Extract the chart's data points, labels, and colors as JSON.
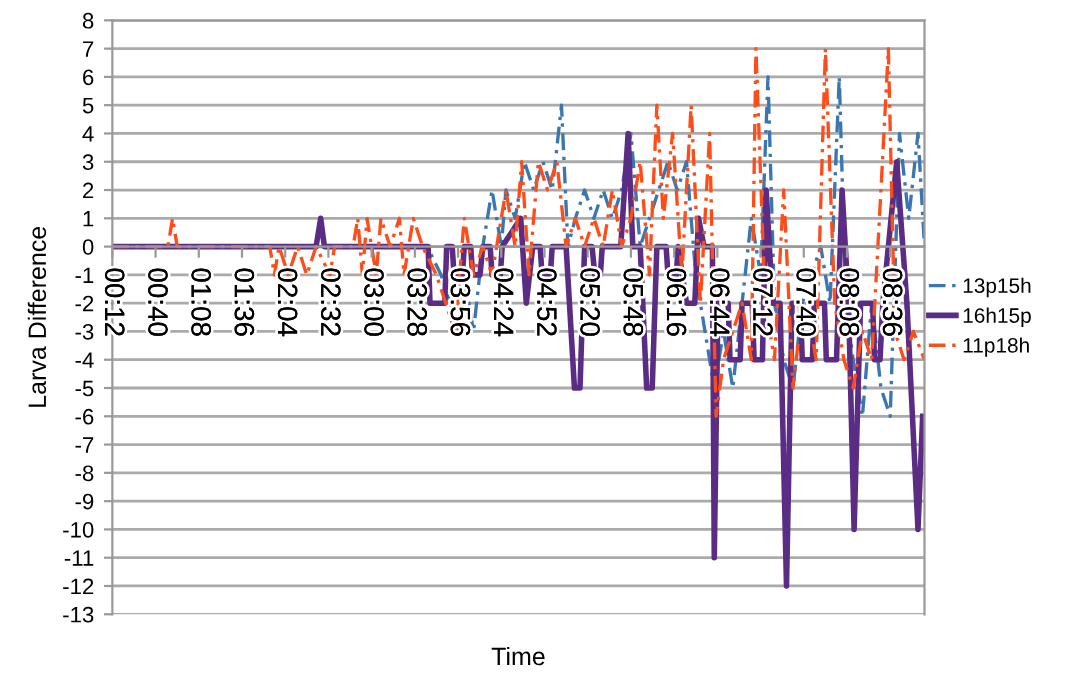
{
  "chart_data": {
    "type": "line",
    "xlabel": "Time",
    "ylabel": "Larva Difference",
    "xlim": [
      0.2,
      8.97
    ],
    "ylim": [
      -13,
      8
    ],
    "xticks": [
      {
        "value": 0.2,
        "label": "00:12"
      },
      {
        "value": 0.6667,
        "label": "00:40"
      },
      {
        "value": 1.1333,
        "label": "01:08"
      },
      {
        "value": 1.6,
        "label": "01:36"
      },
      {
        "value": 2.0667,
        "label": "02:04"
      },
      {
        "value": 2.5333,
        "label": "02:32"
      },
      {
        "value": 3,
        "label": "03:00"
      },
      {
        "value": 3.4667,
        "label": "03:28"
      },
      {
        "value": 3.9333,
        "label": "03:56"
      },
      {
        "value": 4.4,
        "label": "04:24"
      },
      {
        "value": 4.8667,
        "label": "04:52"
      },
      {
        "value": 5.3333,
        "label": "05:20"
      },
      {
        "value": 5.8,
        "label": "05:48"
      },
      {
        "value": 6.2667,
        "label": "06:16"
      },
      {
        "value": 6.7333,
        "label": "06:44"
      },
      {
        "value": 7.2,
        "label": "07:12"
      },
      {
        "value": 7.6667,
        "label": "07:40"
      },
      {
        "value": 8.1333,
        "label": "08:08"
      },
      {
        "value": 8.6,
        "label": "08:36"
      }
    ],
    "yticks": [
      -13,
      -12,
      -11,
      -10,
      -9,
      -8,
      -7,
      -6,
      -5,
      -4,
      -3,
      -2,
      -1,
      0,
      1,
      2,
      3,
      4,
      5,
      6,
      7,
      8
    ],
    "grid": "y",
    "legend": "right",
    "marker": "none",
    "series": [
      {
        "name": "13p15h",
        "color": "#3a76b0",
        "line_style": "dashed",
        "x": [
          0.2,
          3.6,
          3.75,
          3.85,
          3.95,
          4.0,
          4.1,
          4.2,
          4.3,
          4.4,
          4.45,
          4.55,
          4.65,
          4.75,
          4.85,
          4.95,
          5.05,
          5.12,
          5.2,
          5.3,
          5.4,
          5.5,
          5.6,
          5.7,
          5.8,
          5.9,
          6.0,
          6.1,
          6.2,
          6.3,
          6.4,
          6.5,
          6.6,
          6.7,
          6.8,
          6.9,
          7.0,
          7.1,
          7.2,
          7.28,
          7.35,
          7.45,
          7.55,
          7.65,
          7.75,
          7.85,
          7.95,
          8.05,
          8.12,
          8.2,
          8.3,
          8.4,
          8.5,
          8.6,
          8.7,
          8.8,
          8.9,
          8.97
        ],
        "values": [
          0,
          0,
          -1,
          -2,
          -3,
          -1,
          -3,
          0,
          2,
          0,
          2,
          1,
          3,
          2,
          3,
          2,
          5,
          0,
          1,
          2,
          1,
          2,
          1,
          2,
          4,
          0,
          1,
          2,
          3,
          2,
          3,
          -1,
          -3,
          -5,
          -3,
          -5,
          -2,
          1,
          -1,
          6,
          -2,
          -4,
          -5,
          -2,
          -1,
          0,
          -2,
          6,
          -2,
          -4,
          -6,
          -2,
          -5,
          -6,
          4,
          1,
          4,
          0
        ]
      },
      {
        "name": "16h15p",
        "color": "#5b2c83",
        "line_style": "solid",
        "x": [
          0.2,
          2.4,
          2.45,
          2.49,
          3.61,
          3.63,
          3.79,
          3.81,
          3.87,
          3.89,
          3.98,
          4.0,
          4.07,
          4.09,
          4.17,
          4.2,
          4.28,
          4.3,
          4.39,
          4.41,
          4.61,
          4.67,
          4.74,
          4.82,
          4.84,
          4.93,
          4.95,
          5.1,
          5.19,
          5.25,
          5.3,
          5.38,
          5.41,
          5.47,
          5.49,
          5.69,
          5.77,
          5.82,
          5.9,
          5.97,
          6.03,
          6.08,
          6.18,
          6.2,
          6.29,
          6.31,
          6.4,
          6.49,
          6.53,
          6.59,
          6.68,
          6.7,
          6.74,
          6.85,
          6.87,
          6.98,
          7.0,
          7.11,
          7.13,
          7.22,
          7.26,
          7.33,
          7.41,
          7.48,
          7.54,
          7.63,
          7.65,
          7.76,
          7.78,
          7.89,
          7.91,
          8.02,
          8.08,
          8.15,
          8.21,
          8.28,
          8.41,
          8.43,
          8.49,
          8.52,
          8.67,
          8.78,
          8.9,
          8.95
        ],
        "values": [
          0,
          0,
          1,
          0,
          0,
          -2,
          -2,
          0,
          0,
          -1,
          -1,
          0,
          0,
          -1,
          -1,
          0,
          0,
          -1,
          -1,
          0,
          1,
          -2,
          0,
          0,
          -1,
          -1,
          0,
          0,
          -5,
          -5,
          0,
          0,
          -1,
          -1,
          0,
          0,
          4,
          0,
          0,
          -5,
          -5,
          0,
          0,
          -1,
          -1,
          0,
          -2,
          -2,
          1,
          0,
          0,
          -11,
          -2,
          -2,
          -4,
          -4,
          -2,
          -2,
          -4,
          -4,
          2,
          -2,
          -2,
          -12,
          -2,
          -2,
          -4,
          -4,
          -2,
          -2,
          -4,
          -4,
          2,
          -2,
          -10,
          -2,
          -2,
          -4,
          -4,
          -2,
          3,
          -2,
          -10,
          -6
        ]
      },
      {
        "name": "11p18h",
        "color": "#ff4d1a",
        "line_style": "dashed",
        "x": [
          0.2,
          0.6,
          0.8,
          0.85,
          0.9,
          1.9,
          1.95,
          2.0,
          2.1,
          2.2,
          2.3,
          2.4,
          2.55,
          2.6,
          2.8,
          2.85,
          2.9,
          2.95,
          3.05,
          3.1,
          3.2,
          3.3,
          3.35,
          3.45,
          3.55,
          3.7,
          3.8,
          3.9,
          4.0,
          4.1,
          4.2,
          4.3,
          4.45,
          4.55,
          4.62,
          4.7,
          4.8,
          4.9,
          5.0,
          5.1,
          5.2,
          5.3,
          5.4,
          5.5,
          5.6,
          5.7,
          5.8,
          5.9,
          6.0,
          6.08,
          6.15,
          6.25,
          6.35,
          6.45,
          6.55,
          6.65,
          6.72,
          6.8,
          6.9,
          7.0,
          7.1,
          7.15,
          7.25,
          7.35,
          7.45,
          7.55,
          7.62,
          7.7,
          7.8,
          7.9,
          8.0,
          8.1,
          8.2,
          8.3,
          8.4,
          8.5,
          8.58,
          8.65,
          8.75,
          8.85,
          8.97
        ],
        "values": [
          0,
          0,
          0,
          1,
          0,
          0,
          -1,
          0,
          -1,
          0,
          -1,
          0,
          -1,
          0,
          0,
          1,
          -1,
          1,
          -1,
          1,
          0,
          1,
          -1,
          1,
          0,
          -1,
          -2,
          -3,
          1,
          -1,
          0,
          -1,
          2,
          0,
          3,
          -1,
          3,
          2,
          3,
          0,
          1,
          0,
          1,
          0,
          2,
          0,
          1,
          3,
          -1,
          5,
          1,
          4,
          -1,
          5,
          -2,
          4,
          -6,
          -4,
          -3,
          -2,
          -4,
          7,
          -2,
          -4,
          2,
          -5,
          -3,
          -2,
          -4,
          7,
          -2,
          -4,
          -5,
          -3,
          -4,
          2,
          7,
          -3,
          -4,
          -3,
          -4
        ]
      }
    ]
  }
}
